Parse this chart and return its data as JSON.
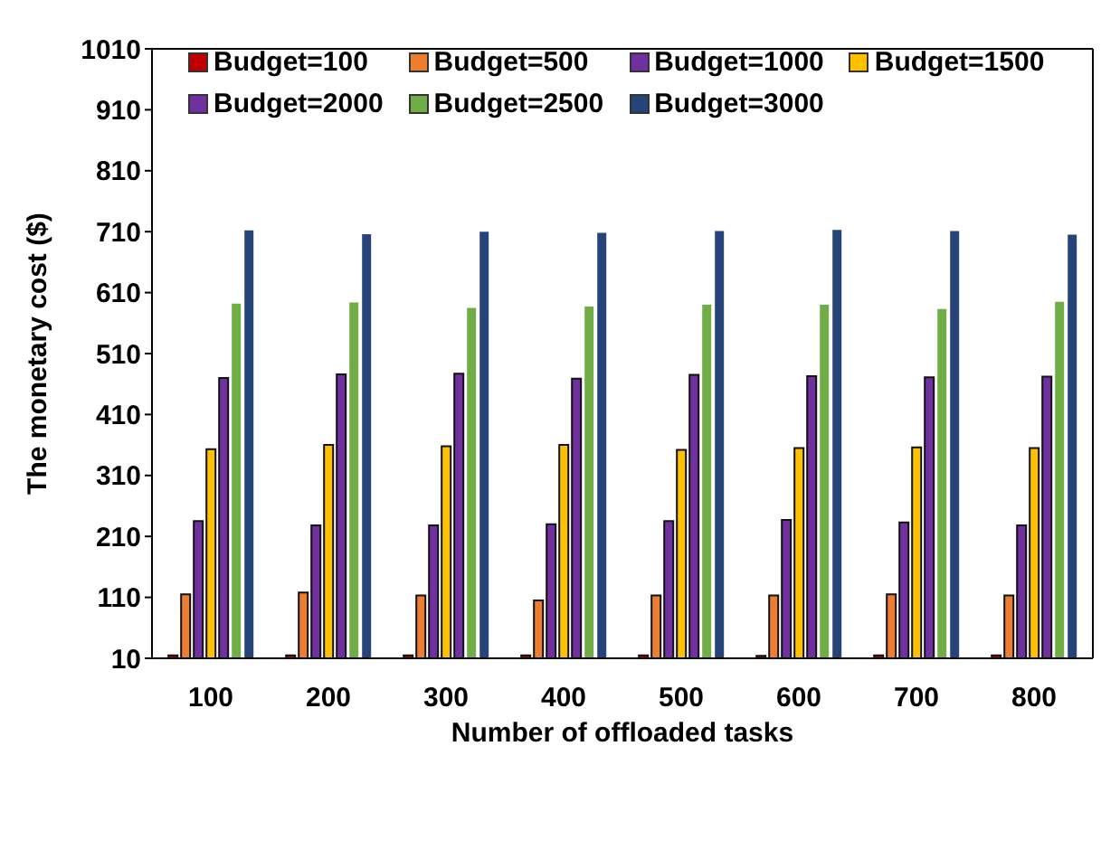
{
  "chart_data": {
    "type": "bar",
    "xlabel": "Number of offloaded tasks",
    "ylabel": "The monetary cost ($)",
    "categories": [
      "100",
      "200",
      "300",
      "400",
      "500",
      "600",
      "700",
      "800"
    ],
    "series": [
      {
        "name": "Budget=100",
        "color": "#c00000",
        "values": [
          15,
          15,
          15,
          15,
          15,
          14,
          15,
          15
        ]
      },
      {
        "name": "Budget=500",
        "color": "#ed7d31",
        "values": [
          115,
          118,
          113,
          105,
          113,
          113,
          115,
          113
        ]
      },
      {
        "name": "Budget=1000",
        "color": "#7030a0",
        "values": [
          235,
          228,
          228,
          230,
          235,
          237,
          233,
          228
        ]
      },
      {
        "name": "Budget=1500",
        "color": "#ffc000",
        "values": [
          353,
          360,
          358,
          360,
          352,
          355,
          356,
          355
        ]
      },
      {
        "name": "Budget=2000",
        "color": "#7030a0",
        "values": [
          470,
          476,
          477,
          469,
          475,
          473,
          471,
          472
        ]
      },
      {
        "name": "Budget=2500",
        "color": "#70ad47",
        "values": [
          592,
          594,
          585,
          587,
          590,
          590,
          583,
          595
        ]
      },
      {
        "name": "Budget=3000",
        "color": "#264478",
        "values": [
          712,
          706,
          710,
          708,
          711,
          713,
          711,
          705
        ]
      }
    ],
    "ylim": [
      10,
      1010
    ],
    "yticks": [
      10,
      110,
      210,
      310,
      410,
      510,
      610,
      710,
      810,
      910,
      1010
    ],
    "legend": "top left"
  }
}
